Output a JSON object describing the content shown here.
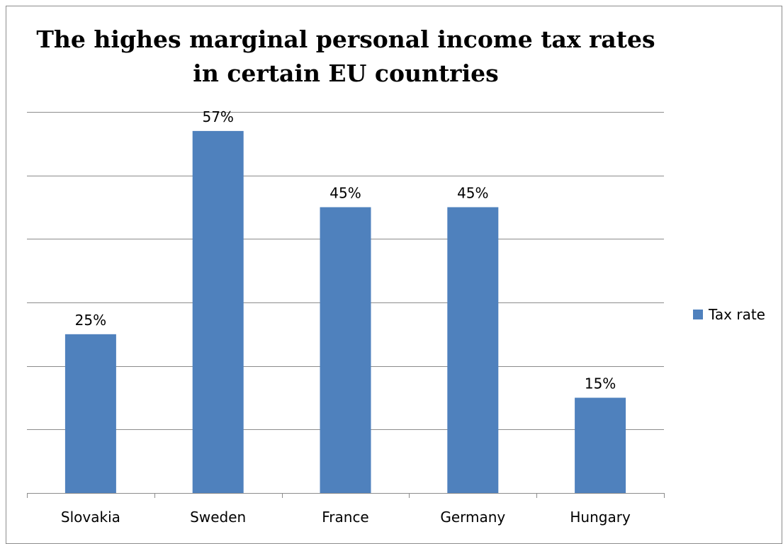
{
  "chart_data": {
    "type": "bar",
    "title_lines": [
      "The highes marginal personal income tax rates",
      "in certain EU countries"
    ],
    "categories": [
      "Slovakia",
      "Sweden",
      "France",
      "Germany",
      "Hungary"
    ],
    "series": [
      {
        "name": "Tax rate",
        "values": [
          25,
          57,
          45,
          45,
          15
        ],
        "labels": [
          "25%",
          "57%",
          "45%",
          "45%",
          "15%"
        ],
        "color": "#4f81bd"
      }
    ],
    "ylim": [
      0,
      60
    ],
    "gridline_step": 10,
    "grid": true,
    "legend_position": "right"
  }
}
